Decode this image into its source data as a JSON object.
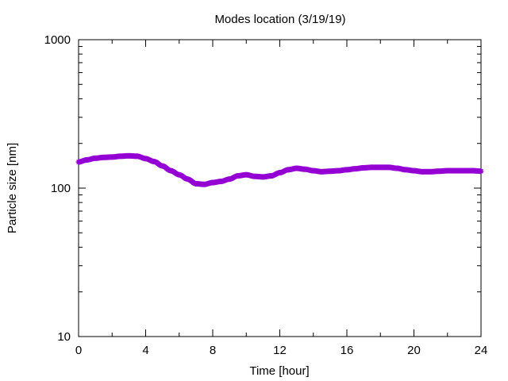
{
  "chart_data": {
    "type": "scatter",
    "title": "Modes location (3/19/19)",
    "xlabel": "Time [hour]",
    "ylabel": "Particle size [nm]",
    "xlim": [
      0,
      24
    ],
    "ylim": [
      10,
      1000
    ],
    "yscale": "log",
    "grid": false,
    "legend": "none",
    "x_ticks": [
      "0",
      "4",
      "8",
      "12",
      "16",
      "20",
      "24"
    ],
    "y_ticks": [
      "10",
      "100",
      "1000"
    ],
    "series": [
      {
        "color": "#9400d3",
        "marker": "star",
        "x": [
          0,
          0.5,
          1,
          1.5,
          2,
          2.5,
          3,
          3.5,
          4,
          4.5,
          5,
          5.5,
          6,
          6.5,
          7,
          7.5,
          8,
          8.5,
          9,
          9.5,
          10,
          10.5,
          11,
          11.5,
          12,
          12.5,
          13,
          13.5,
          14,
          14.5,
          15,
          15.5,
          16,
          16.5,
          17,
          17.5,
          18,
          18.5,
          19,
          19.5,
          20,
          20.5,
          21,
          21.5,
          22,
          22.5,
          23,
          23.5,
          24
        ],
        "y": [
          150,
          155,
          159,
          161,
          162,
          164,
          165,
          164,
          158,
          151,
          141,
          131,
          123,
          115,
          107,
          106,
          109,
          111,
          115,
          121,
          123,
          120,
          119,
          121,
          127,
          133,
          136,
          134,
          131,
          129,
          130,
          131,
          133,
          135,
          137,
          138,
          138,
          138,
          136,
          133,
          131,
          129,
          129,
          130,
          131,
          131,
          131,
          131,
          130
        ]
      }
    ]
  }
}
